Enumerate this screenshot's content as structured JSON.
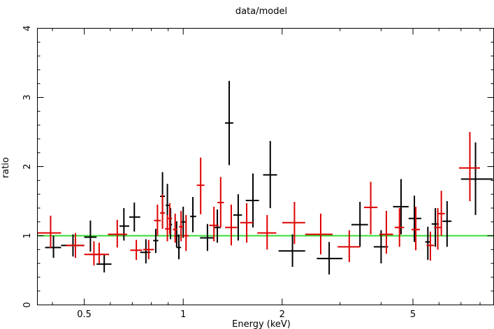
{
  "chart_data": {
    "type": "scatter",
    "title": "data/model",
    "xlabel": "Energy (keV)",
    "ylabel": "ratio",
    "x_scale": "log",
    "xlim": [
      0.36,
      8.8
    ],
    "ylim": [
      0,
      4
    ],
    "x_ticks": [
      {
        "value": 0.5,
        "label": "0.5"
      },
      {
        "value": 1,
        "label": "1"
      },
      {
        "value": 2,
        "label": "2"
      },
      {
        "value": 5,
        "label": "5"
      }
    ],
    "y_ticks": [
      {
        "value": 0,
        "label": "0"
      },
      {
        "value": 1,
        "label": "1"
      },
      {
        "value": 2,
        "label": "2"
      },
      {
        "value": 3,
        "label": "3"
      },
      {
        "value": 4,
        "label": "4"
      }
    ],
    "reference_line": {
      "y": 1,
      "color": "#33dd33"
    },
    "series": [
      {
        "name": "black",
        "color": "#000000",
        "points": [
          {
            "x": 0.403,
            "xlo": 0.38,
            "xhi": 0.425,
            "y": 0.83,
            "ylo": 0.68,
            "yhi": 1.0
          },
          {
            "x": 0.462,
            "xlo": 0.425,
            "xhi": 0.5,
            "y": 0.86,
            "ylo": 0.7,
            "yhi": 1.02
          },
          {
            "x": 0.522,
            "xlo": 0.5,
            "xhi": 0.545,
            "y": 0.98,
            "ylo": 0.77,
            "yhi": 1.22
          },
          {
            "x": 0.575,
            "xlo": 0.545,
            "xhi": 0.605,
            "y": 0.59,
            "ylo": 0.47,
            "yhi": 0.74
          },
          {
            "x": 0.66,
            "xlo": 0.64,
            "xhi": 0.685,
            "y": 1.14,
            "ylo": 0.93,
            "yhi": 1.4
          },
          {
            "x": 0.71,
            "xlo": 0.685,
            "xhi": 0.74,
            "y": 1.27,
            "ylo": 1.06,
            "yhi": 1.48
          },
          {
            "x": 0.77,
            "xlo": 0.74,
            "xhi": 0.795,
            "y": 0.76,
            "ylo": 0.6,
            "yhi": 0.95
          },
          {
            "x": 0.825,
            "xlo": 0.81,
            "xhi": 0.84,
            "y": 0.93,
            "ylo": 0.75,
            "yhi": 1.1
          },
          {
            "x": 0.865,
            "xlo": 0.85,
            "xhi": 0.88,
            "y": 1.57,
            "ylo": 1.3,
            "yhi": 1.92
          },
          {
            "x": 0.895,
            "xlo": 0.885,
            "xhi": 0.905,
            "y": 1.44,
            "ylo": 1.2,
            "yhi": 1.75
          },
          {
            "x": 0.915,
            "xlo": 0.905,
            "xhi": 0.925,
            "y": 1.16,
            "ylo": 0.95,
            "yhi": 1.4
          },
          {
            "x": 0.955,
            "xlo": 0.94,
            "xhi": 0.97,
            "y": 1.0,
            "ylo": 0.83,
            "yhi": 1.21
          },
          {
            "x": 0.97,
            "xlo": 0.955,
            "xhi": 0.985,
            "y": 0.83,
            "ylo": 0.66,
            "yhi": 1.02
          },
          {
            "x": 1.0,
            "xlo": 0.985,
            "xhi": 1.02,
            "y": 1.2,
            "ylo": 0.97,
            "yhi": 1.42
          },
          {
            "x": 1.07,
            "xlo": 1.05,
            "xhi": 1.095,
            "y": 1.28,
            "ylo": 1.05,
            "yhi": 1.56
          },
          {
            "x": 1.185,
            "xlo": 1.125,
            "xhi": 1.24,
            "y": 0.97,
            "ylo": 0.78,
            "yhi": 1.17
          },
          {
            "x": 1.27,
            "xlo": 1.24,
            "xhi": 1.3,
            "y": 1.12,
            "ylo": 0.9,
            "yhi": 1.38
          },
          {
            "x": 1.38,
            "xlo": 1.34,
            "xhi": 1.42,
            "y": 2.63,
            "ylo": 2.02,
            "yhi": 3.24
          },
          {
            "x": 1.47,
            "xlo": 1.42,
            "xhi": 1.51,
            "y": 1.3,
            "ylo": 0.93,
            "yhi": 1.6
          },
          {
            "x": 1.63,
            "xlo": 1.55,
            "xhi": 1.7,
            "y": 1.51,
            "ylo": 1.12,
            "yhi": 1.9
          },
          {
            "x": 1.84,
            "xlo": 1.75,
            "xhi": 1.93,
            "y": 1.88,
            "ylo": 1.4,
            "yhi": 2.37
          },
          {
            "x": 2.15,
            "xlo": 1.95,
            "xhi": 2.35,
            "y": 0.78,
            "ylo": 0.55,
            "yhi": 1.02
          },
          {
            "x": 2.78,
            "xlo": 2.55,
            "xhi": 3.05,
            "y": 0.67,
            "ylo": 0.44,
            "yhi": 0.91
          },
          {
            "x": 3.45,
            "xlo": 3.25,
            "xhi": 3.65,
            "y": 1.16,
            "ylo": 0.84,
            "yhi": 1.49
          },
          {
            "x": 4.0,
            "xlo": 3.8,
            "xhi": 4.2,
            "y": 0.84,
            "ylo": 0.6,
            "yhi": 1.08
          },
          {
            "x": 4.6,
            "xlo": 4.35,
            "xhi": 4.85,
            "y": 1.42,
            "ylo": 1.02,
            "yhi": 1.82
          },
          {
            "x": 5.05,
            "xlo": 4.85,
            "xhi": 5.3,
            "y": 1.25,
            "ylo": 0.91,
            "yhi": 1.58
          },
          {
            "x": 5.55,
            "xlo": 5.45,
            "xhi": 5.65,
            "y": 0.91,
            "ylo": 0.65,
            "yhi": 1.13
          },
          {
            "x": 5.85,
            "xlo": 5.7,
            "xhi": 6.0,
            "y": 1.17,
            "ylo": 0.84,
            "yhi": 1.4
          },
          {
            "x": 6.35,
            "xlo": 6.15,
            "xhi": 6.55,
            "y": 1.21,
            "ylo": 0.84,
            "yhi": 1.5
          },
          {
            "x": 7.75,
            "xlo": 7.0,
            "xhi": 8.75,
            "y": 1.82,
            "ylo": 1.3,
            "yhi": 2.35
          }
        ]
      },
      {
        "name": "red",
        "color": "#dd0000",
        "points": [
          {
            "x": 0.395,
            "xlo": 0.36,
            "xhi": 0.425,
            "y": 1.04,
            "ylo": 0.82,
            "yhi": 1.29
          },
          {
            "x": 0.47,
            "xlo": 0.44,
            "xhi": 0.5,
            "y": 0.86,
            "ylo": 0.68,
            "yhi": 1.04
          },
          {
            "x": 0.535,
            "xlo": 0.5,
            "xhi": 0.565,
            "y": 0.73,
            "ylo": 0.57,
            "yhi": 0.92
          },
          {
            "x": 0.555,
            "xlo": 0.52,
            "xhi": 0.595,
            "y": 0.73,
            "ylo": 0.6,
            "yhi": 0.9
          },
          {
            "x": 0.63,
            "xlo": 0.59,
            "xhi": 0.675,
            "y": 1.02,
            "ylo": 0.83,
            "yhi": 1.23
          },
          {
            "x": 0.72,
            "xlo": 0.69,
            "xhi": 0.75,
            "y": 0.79,
            "ylo": 0.65,
            "yhi": 0.94
          },
          {
            "x": 0.785,
            "xlo": 0.755,
            "xhi": 0.815,
            "y": 0.8,
            "ylo": 0.66,
            "yhi": 0.94
          },
          {
            "x": 0.835,
            "xlo": 0.815,
            "xhi": 0.855,
            "y": 1.22,
            "ylo": 1.0,
            "yhi": 1.45
          },
          {
            "x": 0.865,
            "xlo": 0.85,
            "xhi": 0.88,
            "y": 1.33,
            "ylo": 1.1,
            "yhi": 1.6
          },
          {
            "x": 0.895,
            "xlo": 0.88,
            "xhi": 0.91,
            "y": 1.1,
            "ylo": 0.92,
            "yhi": 1.3
          },
          {
            "x": 0.91,
            "xlo": 0.9,
            "xhi": 0.925,
            "y": 1.25,
            "ylo": 1.02,
            "yhi": 1.47
          },
          {
            "x": 0.945,
            "xlo": 0.93,
            "xhi": 0.96,
            "y": 1.09,
            "ylo": 0.9,
            "yhi": 1.32
          },
          {
            "x": 0.985,
            "xlo": 0.97,
            "xhi": 1.0,
            "y": 1.13,
            "ylo": 0.92,
            "yhi": 1.36
          },
          {
            "x": 1.02,
            "xlo": 1.0,
            "xhi": 1.04,
            "y": 1.0,
            "ylo": 0.78,
            "yhi": 1.3
          },
          {
            "x": 1.13,
            "xlo": 1.1,
            "xhi": 1.16,
            "y": 1.73,
            "ylo": 1.31,
            "yhi": 2.13
          },
          {
            "x": 1.24,
            "xlo": 1.2,
            "xhi": 1.28,
            "y": 1.15,
            "ylo": 0.92,
            "yhi": 1.42
          },
          {
            "x": 1.3,
            "xlo": 1.27,
            "xhi": 1.33,
            "y": 1.48,
            "ylo": 1.12,
            "yhi": 1.85
          },
          {
            "x": 1.4,
            "xlo": 1.34,
            "xhi": 1.46,
            "y": 1.12,
            "ylo": 0.86,
            "yhi": 1.45
          },
          {
            "x": 1.56,
            "xlo": 1.49,
            "xhi": 1.63,
            "y": 1.19,
            "ylo": 0.9,
            "yhi": 1.47
          },
          {
            "x": 1.8,
            "xlo": 1.68,
            "xhi": 1.92,
            "y": 1.04,
            "ylo": 0.8,
            "yhi": 1.3
          },
          {
            "x": 2.18,
            "xlo": 2.0,
            "xhi": 2.35,
            "y": 1.19,
            "ylo": 0.88,
            "yhi": 1.49
          },
          {
            "x": 2.62,
            "xlo": 2.35,
            "xhi": 2.85,
            "y": 1.02,
            "ylo": 0.73,
            "yhi": 1.32
          },
          {
            "x": 3.2,
            "xlo": 2.95,
            "xhi": 3.45,
            "y": 0.84,
            "ylo": 0.62,
            "yhi": 1.08
          },
          {
            "x": 3.72,
            "xlo": 3.55,
            "xhi": 3.9,
            "y": 1.41,
            "ylo": 1.02,
            "yhi": 1.78
          },
          {
            "x": 4.15,
            "xlo": 3.95,
            "xhi": 4.35,
            "y": 1.02,
            "ylo": 0.74,
            "yhi": 1.36
          },
          {
            "x": 4.55,
            "xlo": 4.4,
            "xhi": 4.7,
            "y": 1.12,
            "ylo": 0.84,
            "yhi": 1.4
          },
          {
            "x": 5.1,
            "xlo": 4.95,
            "xhi": 5.25,
            "y": 1.09,
            "ylo": 0.79,
            "yhi": 1.42
          },
          {
            "x": 5.65,
            "xlo": 5.5,
            "xhi": 5.8,
            "y": 0.86,
            "ylo": 0.64,
            "yhi": 1.06
          },
          {
            "x": 5.95,
            "xlo": 5.8,
            "xhi": 6.1,
            "y": 1.12,
            "ylo": 0.8,
            "yhi": 1.4
          },
          {
            "x": 6.1,
            "xlo": 5.95,
            "xhi": 6.25,
            "y": 1.32,
            "ylo": 1.0,
            "yhi": 1.65
          },
          {
            "x": 7.45,
            "xlo": 6.9,
            "xhi": 8.0,
            "y": 1.98,
            "ylo": 1.5,
            "yhi": 2.5
          }
        ]
      }
    ]
  }
}
